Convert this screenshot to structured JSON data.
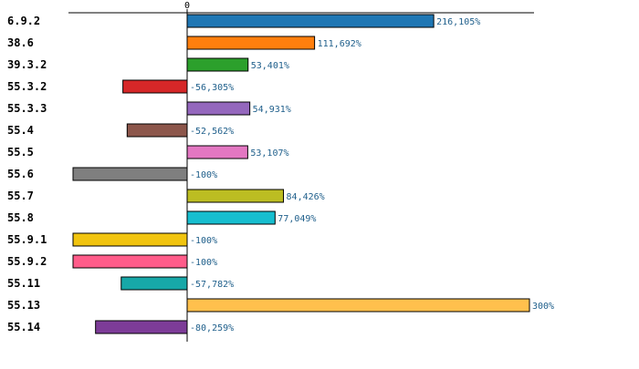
{
  "chart_data": {
    "type": "bar",
    "orientation": "horizontal",
    "title": "",
    "xlabel": "",
    "ylabel": "",
    "xlim": [
      -100,
      300
    ],
    "grid": false,
    "ticks": [
      {
        "value": 0,
        "label": "0"
      }
    ],
    "categories": [
      "6.9.2",
      "38.6",
      "39.3.2",
      "55.3.2",
      "55.3.3",
      "55.4",
      "55.5",
      "55.6",
      "55.7",
      "55.8",
      "55.9.1",
      "55.9.2",
      "55.11",
      "55.13",
      "55.14"
    ],
    "values": [
      216.105,
      111.692,
      53.401,
      -56.305,
      54.931,
      -52.562,
      53.107,
      -100,
      84.426,
      77.049,
      -100,
      -100,
      -57.782,
      300,
      -80.259
    ],
    "value_labels": [
      "216,105%",
      "111,692%",
      "53,401%",
      "-56,305%",
      "54,931%",
      "-52,562%",
      "53,107%",
      "-100%",
      "84,426%",
      "77,049%",
      "-100%",
      "-100%",
      "-57,782%",
      "300%",
      "-80,259%"
    ],
    "colors": [
      "#1f77b4",
      "#ff7f0e",
      "#2ca02c",
      "#d62728",
      "#9467bd",
      "#8c564b",
      "#e377c2",
      "#7f7f7f",
      "#bcbd22",
      "#17becf",
      "#f1c40f",
      "#ff5c8a",
      "#17a8a8",
      "#ffc04d",
      "#7d3c98"
    ]
  }
}
